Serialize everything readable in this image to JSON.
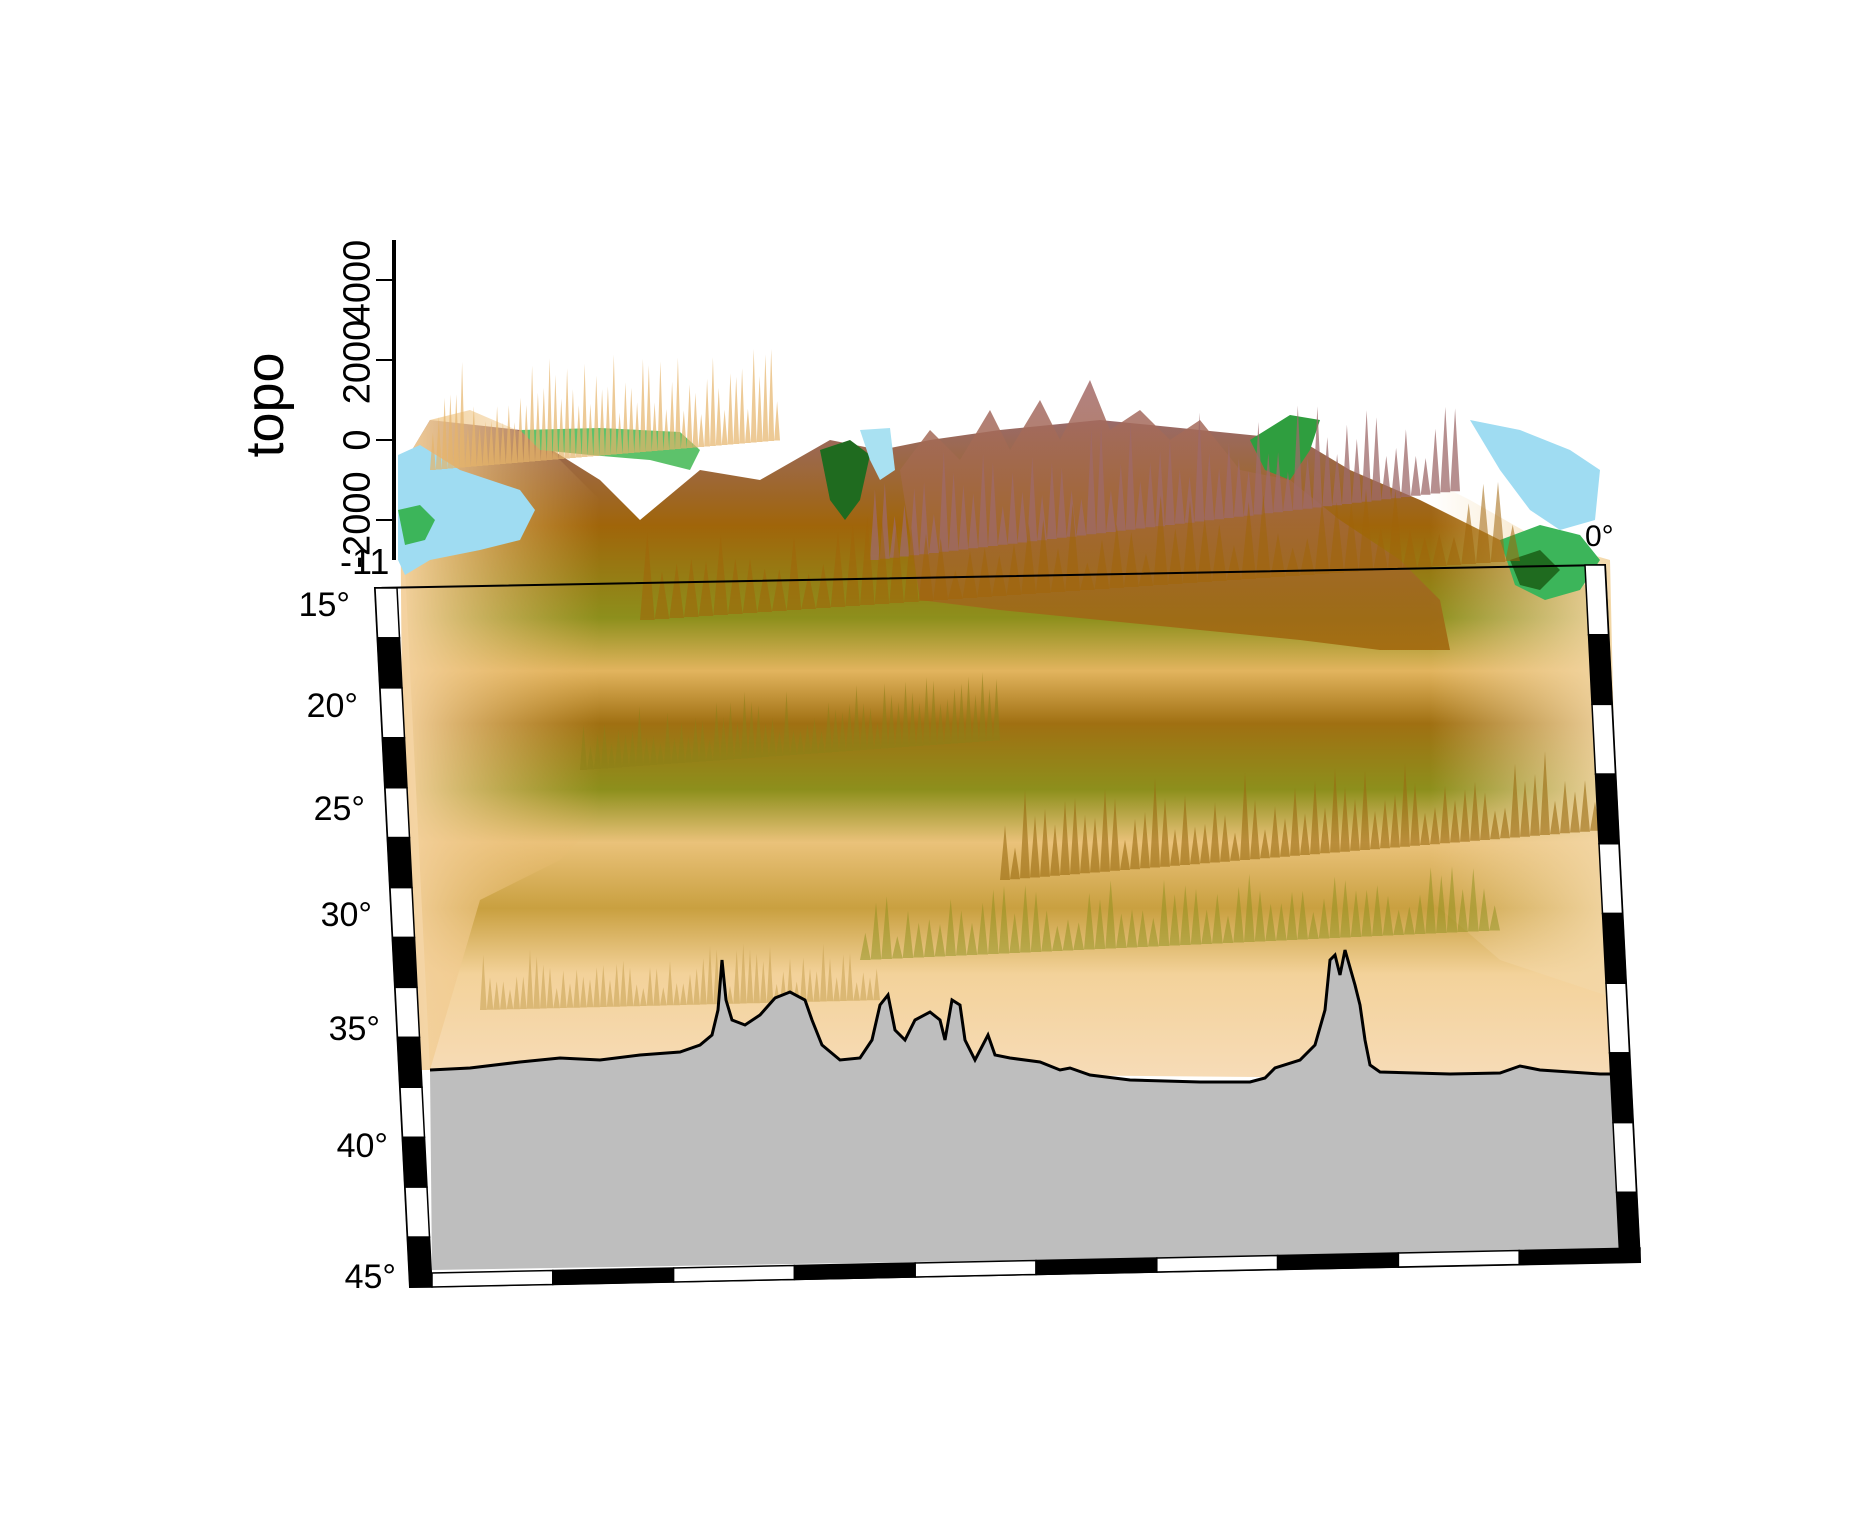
{
  "vertical_axis": {
    "label": "topo",
    "ticks": [
      "-2000",
      "0",
      "2000",
      "4000"
    ]
  },
  "latitude_axis": {
    "ticks": [
      "15°",
      "20°",
      "25°",
      "30°",
      "35°",
      "40°",
      "45°"
    ]
  },
  "partial_labels": {
    "corner_left": "-11",
    "corner_right": "0°"
  },
  "colors": {
    "profile_fill": "#bebebe",
    "profile_line": "#000000",
    "water": "#9fdcf2",
    "lowland_green": "#3cb55a",
    "dark_green": "#1f6b1f",
    "sand": "#f1c98a",
    "light_sand": "#f7dcb8",
    "olive": "#8d8f1c",
    "brown": "#a0650a",
    "mauve": "#a56b6b"
  }
}
